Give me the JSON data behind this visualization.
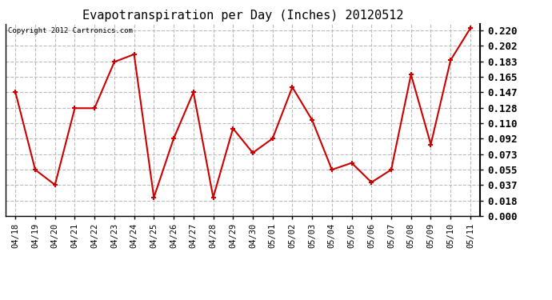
{
  "title": "Evapotranspiration per Day (Inches) 20120512",
  "copyright": "Copyright 2012 Cartronics.com",
  "labels": [
    "04/18",
    "04/19",
    "04/20",
    "04/21",
    "04/22",
    "04/23",
    "04/24",
    "04/25",
    "04/26",
    "04/27",
    "04/28",
    "04/29",
    "04/30",
    "05/01",
    "05/02",
    "05/03",
    "05/04",
    "05/05",
    "05/06",
    "05/07",
    "05/08",
    "05/09",
    "05/10",
    "05/11"
  ],
  "values": [
    0.147,
    0.055,
    0.037,
    0.128,
    0.128,
    0.183,
    0.192,
    0.022,
    0.092,
    0.147,
    0.022,
    0.104,
    0.075,
    0.092,
    0.153,
    0.114,
    0.055,
    0.063,
    0.04,
    0.055,
    0.168,
    0.085,
    0.185,
    0.223
  ],
  "line_color": "#cc0000",
  "marker_color": "#cc0000",
  "bg_color": "#ffffff",
  "plot_bg_color": "#ffffff",
  "grid_color": "#bbbbbb",
  "ylim": [
    0.0,
    0.228
  ],
  "yticks": [
    0.0,
    0.018,
    0.037,
    0.055,
    0.073,
    0.092,
    0.11,
    0.128,
    0.147,
    0.165,
    0.183,
    0.202,
    0.22
  ],
  "title_fontsize": 11,
  "copyright_fontsize": 6.5,
  "tick_fontsize": 7.5,
  "ytick_fontsize": 9
}
